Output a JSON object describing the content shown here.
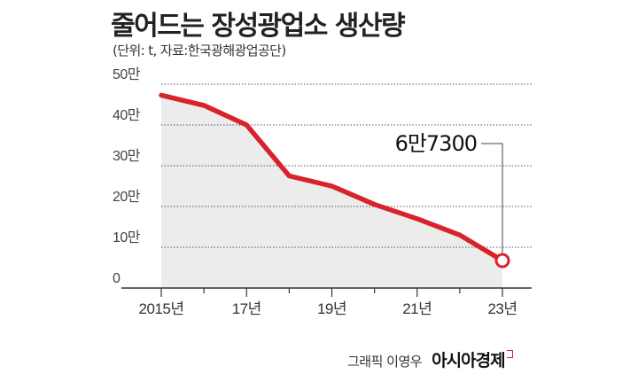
{
  "title": "줄어드는 장성광업소 생산량",
  "subtitle": "(단위: t, 자료:한국광해광업공단)",
  "credit": {
    "text": "그래픽 이영우",
    "logo": "아시아경제"
  },
  "colors": {
    "line": "#d8232a",
    "area": "#ececec",
    "grid": "#555555"
  },
  "chart_data": {
    "type": "area",
    "x": [
      2015,
      2016,
      2017,
      2018,
      2019,
      2020,
      2021,
      2022,
      2023
    ],
    "x_tick_labels": [
      {
        "x": 2015,
        "label": "2015년"
      },
      {
        "x": 2017,
        "label": "17년"
      },
      {
        "x": 2019,
        "label": "19년"
      },
      {
        "x": 2021,
        "label": "21년"
      },
      {
        "x": 2023,
        "label": "23년"
      }
    ],
    "values": [
      473000,
      448000,
      400000,
      275000,
      250000,
      205000,
      170000,
      130000,
      67300
    ],
    "y_ticks": [
      {
        "value": 0,
        "label": "0"
      },
      {
        "value": 100000,
        "label": "10만"
      },
      {
        "value": 200000,
        "label": "20만"
      },
      {
        "value": 300000,
        "label": "30만"
      },
      {
        "value": 400000,
        "label": "40만"
      },
      {
        "value": 500000,
        "label": "50만"
      }
    ],
    "ylim": [
      0,
      500000
    ],
    "grid": true,
    "annotation": {
      "x": 2023,
      "label": "6만7300"
    }
  }
}
